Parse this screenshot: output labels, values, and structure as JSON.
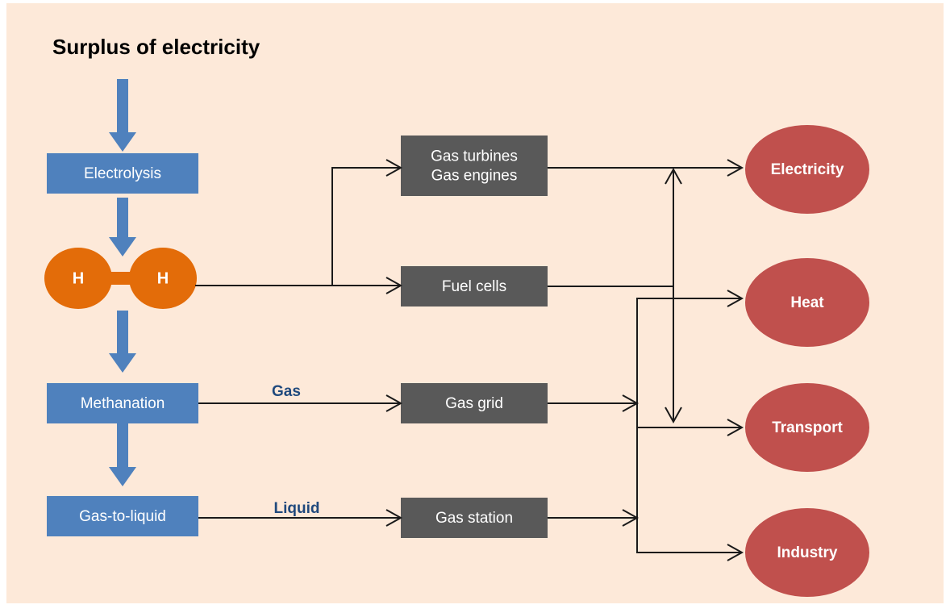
{
  "title": "Surplus of electricity",
  "process": [
    "Electrolysis",
    "Methanation",
    "Gas-to-liquid"
  ],
  "hydrogen": [
    "H",
    "H"
  ],
  "conversion": [
    [
      "Gas turbines",
      "Gas engines"
    ],
    [
      "Fuel cells"
    ],
    [
      "Gas grid"
    ],
    [
      "Gas station"
    ]
  ],
  "carriers": [
    "Gas",
    "Liquid"
  ],
  "uses": [
    "Electricity",
    "Heat",
    "Transport",
    "Industry"
  ]
}
